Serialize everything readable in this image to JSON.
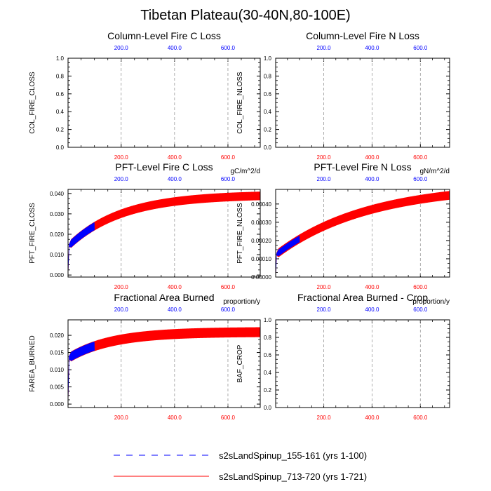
{
  "page_title": "Tibetan Plateau(30-40N,80-100E)",
  "colors": {
    "blue": "#0000ff",
    "red": "#ff0000",
    "grid": "#999999"
  },
  "legend": {
    "items": [
      {
        "label": "s2sLandSpinup_155-161 (yrs 1-100)",
        "color": "#0000ff",
        "dash": "dashed"
      },
      {
        "label": "s2sLandSpinup_713-720 (yrs 1-721)",
        "color": "#ff0000",
        "dash": "solid"
      }
    ]
  },
  "chart_data": [
    {
      "type": "line",
      "title": "Column-Level Fire C Loss",
      "ylabel": "COL_FIRE_CLOSS",
      "units": "",
      "xlim": [
        1,
        721
      ],
      "ylim": [
        0,
        1
      ],
      "yticks": [
        0.0,
        0.2,
        0.4,
        0.6,
        0.8,
        1.0
      ],
      "ytick_labels": [
        "0.0",
        "0.2",
        "0.4",
        "0.6",
        "0.8",
        "1.0"
      ],
      "top_ticks": [
        "200.0",
        "400.0",
        "600.0"
      ],
      "bottom_ticks": [
        "200.0",
        "400.0",
        "600.0"
      ],
      "grid_x": true,
      "series": []
    },
    {
      "type": "line",
      "title": "Column-Level Fire N Loss",
      "ylabel": "COL_FIRE_NLOSS",
      "units": "",
      "xlim": [
        1,
        721
      ],
      "ylim": [
        0,
        1
      ],
      "yticks": [
        0.0,
        0.2,
        0.4,
        0.6,
        0.8,
        1.0
      ],
      "ytick_labels": [
        "0.0",
        "0.2",
        "0.4",
        "0.6",
        "0.8",
        "1.0"
      ],
      "top_ticks": [
        "200.0",
        "400.0",
        "600.0"
      ],
      "bottom_ticks": [
        "200.0",
        "400.0",
        "600.0"
      ],
      "grid_x": true,
      "series": []
    },
    {
      "type": "line",
      "title": "PFT-Level Fire C Loss",
      "ylabel": "PFT_FIRE_CLOSS",
      "units": "gC/m^2/d",
      "xlim": [
        1,
        721
      ],
      "ylim": [
        -0.001,
        0.042
      ],
      "yticks": [
        0.0,
        0.01,
        0.02,
        0.03,
        0.04
      ],
      "ytick_labels": [
        "0.000",
        "0.010",
        "0.020",
        "0.030",
        "0.040"
      ],
      "top_ticks": [
        "200.0",
        "400.0",
        "600.0"
      ],
      "bottom_ticks": [
        "200.0",
        "400.0",
        "600.0"
      ],
      "grid_x": true,
      "series": [
        {
          "color": "#0000ff",
          "x_range": [
            1,
            100
          ],
          "curve": {
            "base": 0.0145,
            "amp": 0.025,
            "tau": 200,
            "ramp_end": 5
          },
          "cycle_amp": 0.0032,
          "dashed": true
        },
        {
          "color": "#ff0000",
          "x_range": [
            1,
            721
          ],
          "curve": {
            "base": 0.0145,
            "amp": 0.025,
            "tau": 200,
            "ramp_end": 5
          },
          "cycle_amp": 0.0035,
          "dashed": false
        }
      ]
    },
    {
      "type": "line",
      "title": "PFT-Level Fire N Loss",
      "ylabel": "PFT_FIRE_NLOSS",
      "units": "gN/m^2/d",
      "xlim": [
        1,
        721
      ],
      "ylim": [
        0,
        0.00048
      ],
      "yticks": [
        0,
        0.0001,
        0.0002,
        0.0003,
        0.0004
      ],
      "ytick_labels": [
        "0.00000",
        "0.00010",
        "0.00020",
        "0.00030",
        "0.00040"
      ],
      "top_ticks": [
        "200.0",
        "400.0",
        "600.0"
      ],
      "bottom_ticks": [
        "200.0",
        "400.0",
        "600.0"
      ],
      "grid_x": true,
      "series": [
        {
          "color": "#0000ff",
          "x_range": [
            1,
            100
          ],
          "curve": {
            "base": 0.000125,
            "amp": 0.00038,
            "tau": 380,
            "ramp_end": 5
          },
          "cycle_amp": 3e-05,
          "dashed": true
        },
        {
          "color": "#ff0000",
          "x_range": [
            1,
            721
          ],
          "curve": {
            "base": 0.000125,
            "amp": 0.00038,
            "tau": 380,
            "ramp_end": 5
          },
          "cycle_amp": 4e-05,
          "dashed": false
        }
      ]
    },
    {
      "type": "line",
      "title": "Fractional Area Burned",
      "ylabel": "FAREA_BURNED",
      "units": "proportion/y",
      "xlim": [
        1,
        721
      ],
      "ylim": [
        -0.001,
        0.0245
      ],
      "yticks": [
        0.0,
        0.005,
        0.01,
        0.015,
        0.02
      ],
      "ytick_labels": [
        "0.000",
        "0.005",
        "0.010",
        "0.015",
        "0.020"
      ],
      "top_ticks": [
        "200.0",
        "400.0",
        "600.0"
      ],
      "bottom_ticks": [
        "200.0",
        "400.0",
        "600.0"
      ],
      "grid_x": true,
      "series": [
        {
          "color": "#0000ff",
          "x_range": [
            1,
            100
          ],
          "curve": {
            "base": 0.0135,
            "amp": 0.0075,
            "tau": 160,
            "ramp_end": 5
          },
          "cycle_amp": 0.0022,
          "dashed": true
        },
        {
          "color": "#ff0000",
          "x_range": [
            1,
            721
          ],
          "curve": {
            "base": 0.0135,
            "amp": 0.0075,
            "tau": 160,
            "ramp_end": 5
          },
          "cycle_amp": 0.0024,
          "dashed": false
        }
      ]
    },
    {
      "type": "line",
      "title": "Fractional Area Burned - Crop",
      "ylabel": "BAF_CROP",
      "units": "proportion/y",
      "xlim": [
        1,
        721
      ],
      "ylim": [
        0,
        1
      ],
      "yticks": [
        0.0,
        0.2,
        0.4,
        0.6,
        0.8,
        1.0
      ],
      "ytick_labels": [
        "0.0",
        "0.2",
        "0.4",
        "0.6",
        "0.8",
        "1.0"
      ],
      "top_ticks": [
        "200.0",
        "400.0",
        "600.0"
      ],
      "bottom_ticks": [
        "200.0",
        "400.0",
        "600.0"
      ],
      "grid_x": true,
      "series": []
    }
  ]
}
